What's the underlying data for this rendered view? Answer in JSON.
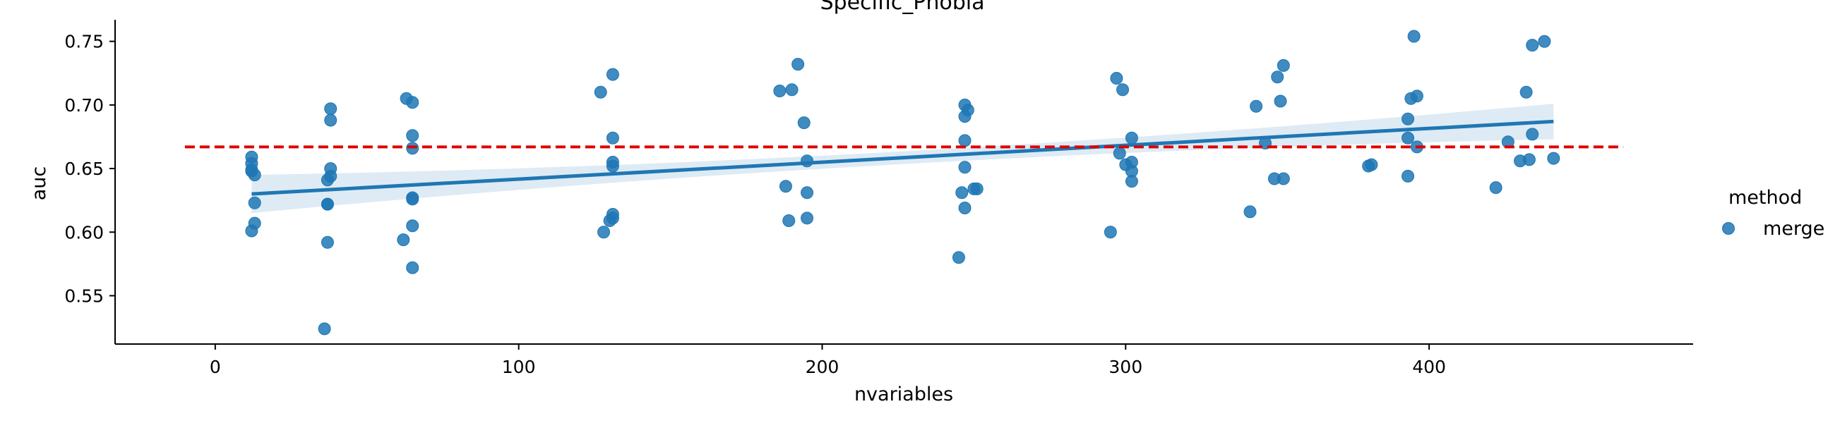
{
  "chart_data": {
    "type": "scatter",
    "title": "Specific_Phobia",
    "xlabel": "nvariables",
    "ylabel": "auc",
    "xlim": [
      -33,
      487
    ],
    "ylim": [
      0.512,
      0.767
    ],
    "xticks": [
      0,
      100,
      200,
      300,
      400
    ],
    "yticks": [
      0.55,
      0.6,
      0.65,
      0.7,
      0.75
    ],
    "xtick_labels": [
      "0",
      "100",
      "200",
      "300",
      "400"
    ],
    "ytick_labels": [
      "0.55",
      "0.60",
      "0.65",
      "0.70",
      "0.75"
    ],
    "grid": false,
    "legend": {
      "title": "method",
      "placement": "right",
      "entries": [
        "merge"
      ]
    },
    "colors": {
      "points": "#1f77b4",
      "regression": "#1f77b4",
      "ci_band": "#1f77b4",
      "reference": "#e00000"
    },
    "series": [
      {
        "name": "merge",
        "x": [
          12,
          12,
          12,
          12,
          13,
          13,
          13,
          12,
          38,
          38,
          38,
          37,
          38,
          37,
          37,
          37,
          36,
          63,
          65,
          65,
          65,
          65,
          65,
          65,
          62,
          65,
          127,
          131,
          131,
          131,
          131,
          131,
          131,
          130,
          128,
          186,
          190,
          192,
          194,
          195,
          188,
          195,
          189,
          195,
          247,
          248,
          247,
          247,
          247,
          246,
          250,
          247,
          251,
          245,
          297,
          299,
          302,
          302,
          298,
          300,
          302,
          302,
          295,
          343,
          350,
          352,
          351,
          346,
          349,
          352,
          341,
          395,
          394,
          393,
          396,
          393,
          380,
          393,
          381,
          396,
          438,
          434,
          432,
          434,
          426,
          433,
          430,
          441,
          422
        ],
        "y": [
          0.654,
          0.659,
          0.649,
          0.648,
          0.645,
          0.623,
          0.607,
          0.601,
          0.697,
          0.688,
          0.65,
          0.641,
          0.644,
          0.622,
          0.622,
          0.592,
          0.524,
          0.705,
          0.702,
          0.676,
          0.666,
          0.627,
          0.626,
          0.605,
          0.594,
          0.572,
          0.71,
          0.724,
          0.674,
          0.655,
          0.652,
          0.614,
          0.611,
          0.609,
          0.6,
          0.711,
          0.712,
          0.732,
          0.686,
          0.656,
          0.636,
          0.631,
          0.609,
          0.611,
          0.7,
          0.696,
          0.691,
          0.672,
          0.651,
          0.631,
          0.634,
          0.619,
          0.634,
          0.58,
          0.721,
          0.712,
          0.674,
          0.655,
          0.662,
          0.653,
          0.648,
          0.64,
          0.6,
          0.699,
          0.722,
          0.731,
          0.703,
          0.67,
          0.642,
          0.642,
          0.616,
          0.754,
          0.705,
          0.689,
          0.707,
          0.674,
          0.652,
          0.644,
          0.653,
          0.667,
          0.75,
          0.747,
          0.71,
          0.677,
          0.671,
          0.657,
          0.656,
          0.658,
          0.635
        ]
      }
    ],
    "regression": {
      "x_start": 12,
      "x_end": 441,
      "y_start": 0.63,
      "y_end": 0.687,
      "ci_halfwidth_start": 0.015,
      "ci_halfwidth_end": 0.014,
      "ci_halfwidth_mid": 0.005
    },
    "reference_line": {
      "y": 0.667,
      "x_start": -10,
      "x_end": 464,
      "style": "dashed"
    },
    "legend_marker_size": 1
  }
}
